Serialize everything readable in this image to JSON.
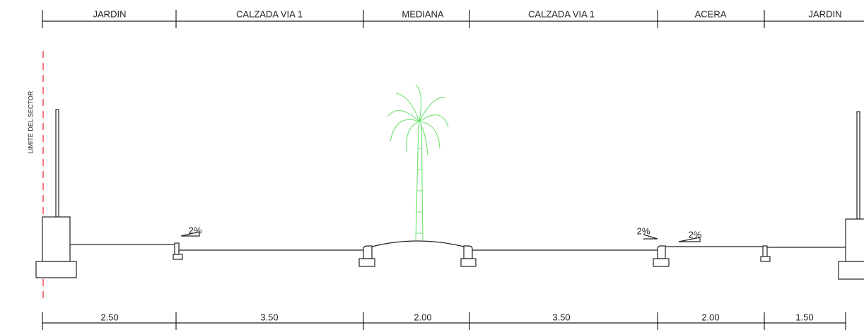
{
  "top_labels": [
    "JARDIN",
    "CALZADA VIA 1",
    "MEDIANA",
    "CALZADA VIA 1",
    "ACERA",
    "JARDIN"
  ],
  "bottom_dimensions": [
    "2.50",
    "3.50",
    "2.00",
    "3.50",
    "2.00",
    "1.50"
  ],
  "sector_label": "LIMITE DEL SECTOR",
  "slopes": [
    "2%",
    "2%",
    "2%"
  ]
}
